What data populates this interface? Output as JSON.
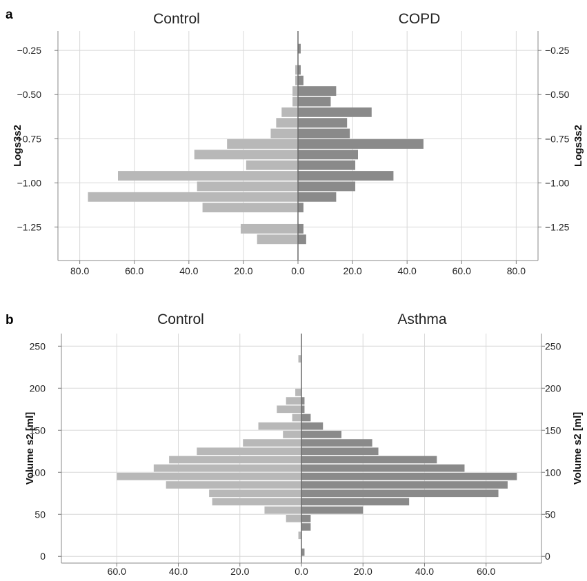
{
  "colors": {
    "left_bars": "#b8b8b8",
    "right_bars": "#8a8a8a",
    "grid": "#d8d8d8"
  },
  "chart_data": [
    {
      "type": "bar",
      "orientation": "horizontal-back-to-back",
      "panel": "a",
      "left_group": "Control",
      "right_group": "COPD",
      "ylabel": "Logs3s2",
      "ylim": [
        -1.44,
        -0.14
      ],
      "yticks": [
        -0.25,
        -0.5,
        -0.75,
        -1.0,
        -1.25
      ],
      "ytick_labels": [
        "−0.25",
        "−0.50",
        "−0.75",
        "−1.00",
        "−1.25"
      ],
      "xlim": [
        -88,
        88
      ],
      "xticks": [
        -80,
        -60,
        -40,
        -20,
        0,
        20,
        40,
        60,
        80
      ],
      "xtick_labels": [
        "80.0",
        "60.0",
        "40.0",
        "20.0",
        "0.0",
        "20.0",
        "40.0",
        "60.0",
        "80.0"
      ],
      "bin_width": 0.06,
      "bin_centers": [
        -0.24,
        -0.3,
        -0.36,
        -0.42,
        -0.48,
        -0.54,
        -0.6,
        -0.66,
        -0.72,
        -0.78,
        -0.84,
        -0.9,
        -0.96,
        -1.02,
        -1.08,
        -1.14,
        -1.2,
        -1.26,
        -1.32
      ],
      "series": [
        {
          "name": "Control",
          "side": "left",
          "values": [
            0,
            0,
            1,
            1,
            2,
            2,
            6,
            8,
            10,
            26,
            38,
            19,
            66,
            37,
            77,
            35,
            0,
            21,
            15
          ]
        },
        {
          "name": "COPD",
          "side": "right",
          "values": [
            1,
            0,
            1,
            2,
            14,
            12,
            27,
            18,
            19,
            46,
            22,
            21,
            35,
            21,
            14,
            2,
            0,
            2,
            3
          ]
        }
      ],
      "grid": true
    },
    {
      "type": "bar",
      "orientation": "horizontal-back-to-back",
      "panel": "b",
      "left_group": "Control",
      "right_group": "Asthma",
      "ylabel": "Volume s2 [ml]",
      "ylim": [
        -8,
        265
      ],
      "yticks": [
        0,
        50,
        100,
        150,
        200,
        250
      ],
      "ytick_labels": [
        "0",
        "50",
        "100",
        "150",
        "200",
        "250"
      ],
      "xlim": [
        -78,
        78
      ],
      "xticks": [
        -60,
        -40,
        -20,
        0,
        20,
        40,
        60
      ],
      "xtick_labels": [
        "60.0",
        "40.0",
        "20.0",
        "0.0",
        "20.0",
        "40.0",
        "60.0"
      ],
      "bin_width": 10,
      "bin_centers": [
        235,
        225,
        215,
        205,
        195,
        185,
        175,
        165,
        155,
        145,
        135,
        125,
        115,
        105,
        95,
        85,
        75,
        65,
        55,
        45,
        35,
        25,
        15,
        5
      ],
      "series": [
        {
          "name": "Control",
          "side": "left",
          "values": [
            1,
            0,
            0,
            0,
            2,
            5,
            8,
            3,
            14,
            6,
            19,
            34,
            43,
            48,
            60,
            44,
            30,
            29,
            12,
            5,
            0,
            1,
            0,
            0
          ]
        },
        {
          "name": "Asthma",
          "side": "right",
          "values": [
            0,
            0,
            0,
            0,
            0,
            1,
            1,
            3,
            7,
            13,
            23,
            25,
            44,
            53,
            70,
            67,
            64,
            35,
            20,
            3,
            3,
            0,
            0,
            1
          ]
        }
      ],
      "grid": true
    }
  ]
}
